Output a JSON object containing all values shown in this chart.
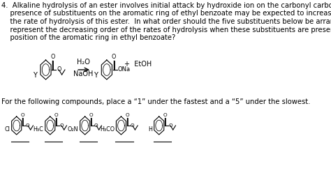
{
  "title_num": "4.",
  "paragraph": "Alkaline hydrolysis of an ester involves initial attack by hydroxide ion on the carbonyl carbon.  The\npresence of substituents on the aromatic ring of ethyl benzoate may be expected to increase/decrease\nthe rate of hydrolysis of this ester.  In what order should the five substituents below be arranged to\nrepresent the decreasing order of the rates of hydrolysis when these substituents are present in the para-\nposition of the aromatic ring in ethyl benzoate?",
  "reaction_label_left": "H₂O\nNaOH",
  "reaction_products": "ONa\n+  EtOH",
  "substituent_Y_left": "Y",
  "substituent_Y_right": "Y",
  "bottom_text": "For the following compounds, place a “1” under the fastest and a “5” under the slowest.",
  "substituents": [
    "Cl",
    "H₃C",
    "O₂N",
    "H₃CO",
    "H"
  ],
  "bg_color": "#ffffff",
  "text_color": "#000000",
  "font_size_body": 7.5,
  "font_size_label": 7.0
}
